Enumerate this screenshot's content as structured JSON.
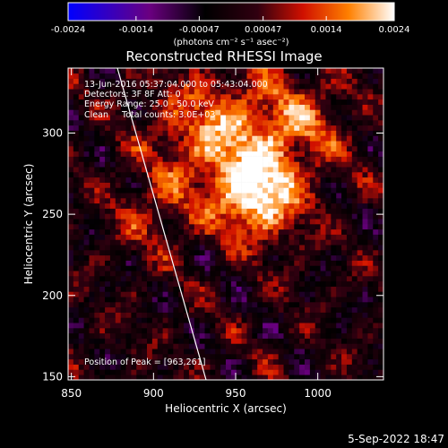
{
  "colorbar": {
    "ticks": [
      "-0.0024",
      "-0.0014",
      "-0.00047",
      "0.00047",
      "0.0014",
      "0.0024"
    ],
    "range": [
      -0.0024,
      0.0024
    ],
    "unit_label": "(photons cm⁻² s⁻¹ asec⁻²)"
  },
  "colors": {
    "background": "#000000",
    "text": "#ffffff"
  },
  "chart_data": {
    "type": "heatmap",
    "title": "Reconstructed RHESSI Image",
    "xlabel": "Heliocentric X (arcsec)",
    "ylabel": "Heliocentric Y (arcsec)",
    "xlim": [
      848,
      1040
    ],
    "ylim": [
      148,
      340
    ],
    "x_ticks": [
      850,
      900,
      950,
      1000
    ],
    "y_ticks": [
      150,
      200,
      250,
      300
    ],
    "annotations": [
      "13-Jun-2016 05:37:04.000 to 05:43:04.000",
      "Detectors: 3F 8F  Att: 0",
      "Energy Range: 25.0 - 50.0 keV",
      "Clean     Total counts: 3.0E+03"
    ],
    "peak_label": "Position of Peak = [963,261]",
    "peak": [
      963,
      261
    ],
    "limb_line": [
      [
        878,
        340
      ],
      [
        932,
        148
      ]
    ],
    "bright_sources": [
      {
        "x": 963,
        "y": 261,
        "sigma": 18,
        "amp": 0.0024
      },
      {
        "x": 935,
        "y": 300,
        "sigma": 25,
        "amp": 0.0016
      },
      {
        "x": 985,
        "y": 305,
        "sigma": 22,
        "amp": 0.0013
      },
      {
        "x": 900,
        "y": 250,
        "sigma": 18,
        "amp": 0.0008
      }
    ]
  },
  "footer": {
    "timestamp": "5-Sep-2022 18:47"
  }
}
